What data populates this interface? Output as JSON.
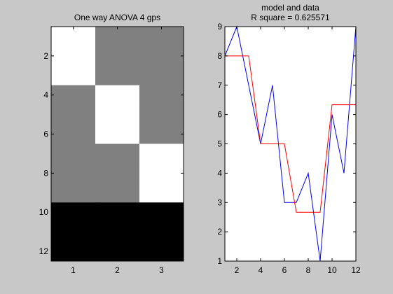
{
  "colors": {
    "figure_bg": "#c8c8c8",
    "axes_bg": "#ffffff",
    "axis_line": "#000000",
    "data_line": "#0000ff",
    "model_line": "#ff0000"
  },
  "chart_data": [
    {
      "type": "heatmap",
      "title": "One way ANOVA 4 gps",
      "colormap": "gray",
      "xticks": [
        1,
        2,
        3
      ],
      "yticks": [
        2,
        4,
        6,
        8,
        10,
        12
      ],
      "xlim": [
        0.5,
        3.5
      ],
      "ylim": [
        0.5,
        12.5
      ],
      "y_direction": "reversed",
      "matrix": [
        [
          1,
          0.5,
          0.5
        ],
        [
          1,
          0.5,
          0.5
        ],
        [
          1,
          0.5,
          0.5
        ],
        [
          0.5,
          1,
          0.5
        ],
        [
          0.5,
          1,
          0.5
        ],
        [
          0.5,
          1,
          0.5
        ],
        [
          0.5,
          0.5,
          1
        ],
        [
          0.5,
          0.5,
          1
        ],
        [
          0.5,
          0.5,
          1
        ],
        [
          0,
          0,
          0
        ],
        [
          0,
          0,
          0
        ],
        [
          0,
          0,
          0
        ]
      ]
    },
    {
      "type": "line",
      "title_lines": [
        "model and data",
        "R square = 0.625571"
      ],
      "x": [
        1,
        2,
        3,
        4,
        5,
        6,
        7,
        8,
        9,
        10,
        11,
        12
      ],
      "xlim": [
        1,
        12
      ],
      "ylim": [
        1,
        9
      ],
      "xticks": [
        2,
        4,
        6,
        8,
        10,
        12
      ],
      "yticks": [
        1,
        2,
        3,
        4,
        5,
        6,
        7,
        8,
        9
      ],
      "series": [
        {
          "color": "#0000ff",
          "values": [
            8,
            9,
            7,
            5,
            7,
            3,
            3,
            4,
            1,
            6,
            4,
            9
          ]
        },
        {
          "color": "#ff0000",
          "values": [
            8,
            8,
            8,
            5,
            5,
            5,
            2.6667,
            2.6667,
            2.6667,
            6.3333,
            6.3333,
            6.3333
          ]
        }
      ]
    }
  ]
}
